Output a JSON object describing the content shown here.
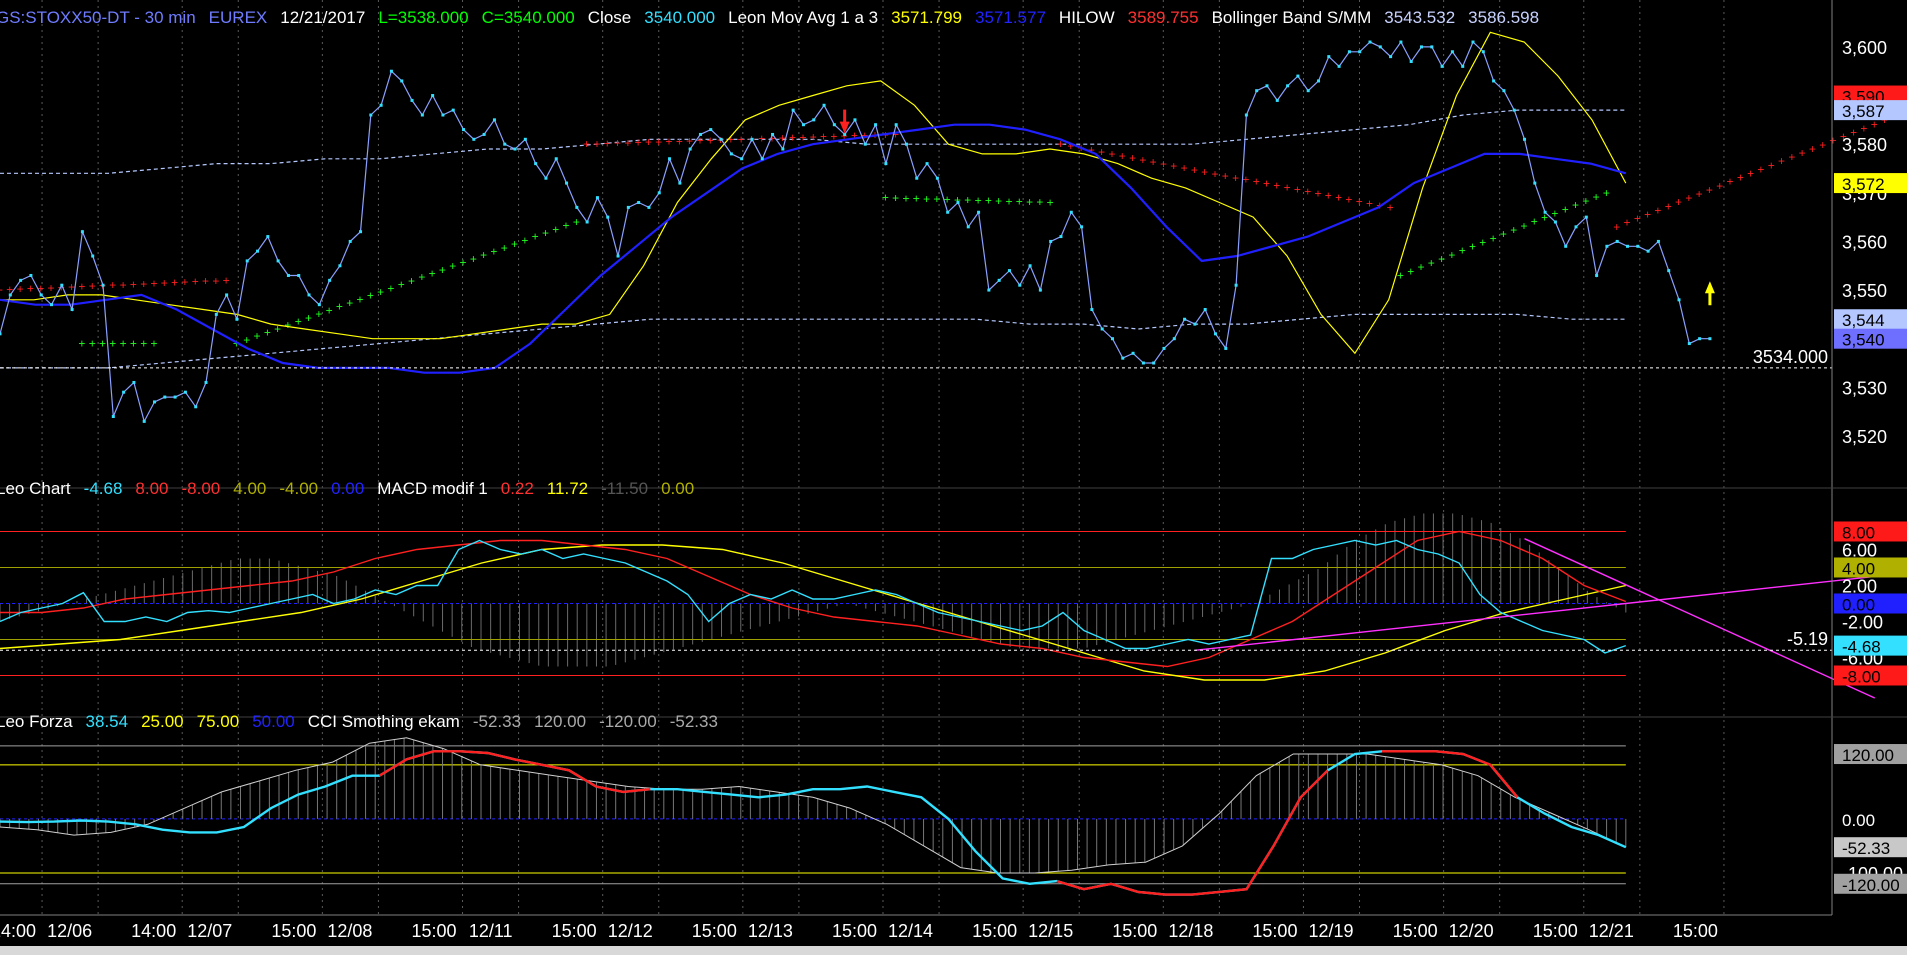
{
  "header": {
    "main": [
      {
        "text": "GS:STOXX50-DT - 30 min",
        "color": "#6f7cff"
      },
      {
        "text": "EUREX",
        "color": "#6f7cff"
      },
      {
        "text": "12/21/2017",
        "color": "#ffffff"
      },
      {
        "text": "L=3538.000",
        "color": "#00ff00"
      },
      {
        "text": "C=3540.000",
        "color": "#00ff00"
      },
      {
        "text": "Close",
        "color": "#ffffff"
      },
      {
        "text": "3540.000",
        "color": "#33e0ff"
      },
      {
        "text": "Leon Mov Avg 1 a 3",
        "color": "#ffffff"
      },
      {
        "text": "3571.799",
        "color": "#ffff00"
      },
      {
        "text": "3571.577",
        "color": "#2222ff"
      },
      {
        "text": "HILOW",
        "color": "#ffffff"
      },
      {
        "text": "3589.755",
        "color": "#ff3030"
      },
      {
        "text": "Bollinger Band S/MM",
        "color": "#ffffff"
      },
      {
        "text": "3543.532",
        "color": "#c8d2ff"
      },
      {
        "text": "3586.598",
        "color": "#c8d2ff"
      }
    ],
    "macd": [
      {
        "text": "Leo Chart",
        "color": "#ffffff"
      },
      {
        "text": "-4.68",
        "color": "#33e0ff"
      },
      {
        "text": "8.00",
        "color": "#ff3030"
      },
      {
        "text": "-8.00",
        "color": "#ff3030"
      },
      {
        "text": "4.00",
        "color": "#b0b000"
      },
      {
        "text": "-4.00",
        "color": "#b0b000"
      },
      {
        "text": "0.00",
        "color": "#2222ff"
      },
      {
        "text": "MACD modif 1",
        "color": "#ffffff"
      },
      {
        "text": "0.22",
        "color": "#ff3030"
      },
      {
        "text": "11.72",
        "color": "#ffff00"
      },
      {
        "text": "-11.50",
        "color": "#555555"
      },
      {
        "text": "0.00",
        "color": "#b0b000"
      }
    ],
    "cci": [
      {
        "text": "Leo Forza",
        "color": "#ffffff"
      },
      {
        "text": "38.54",
        "color": "#33e0ff"
      },
      {
        "text": "25.00",
        "color": "#ffff00"
      },
      {
        "text": "75.00",
        "color": "#ffff00"
      },
      {
        "text": "50.00",
        "color": "#2222ff"
      },
      {
        "text": "CCI Smothing ekam",
        "color": "#ffffff"
      },
      {
        "text": "-52.33",
        "color": "#aaaaaa"
      },
      {
        "text": "120.00",
        "color": "#aaaaaa"
      },
      {
        "text": "-120.00",
        "color": "#aaaaaa"
      },
      {
        "text": "-52.33",
        "color": "#aaaaaa"
      }
    ]
  },
  "time_axis": [
    {
      "label": "14:00",
      "i": 3
    },
    {
      "label": "12/06",
      "i": 7
    },
    {
      "label": "14:00",
      "i": 13
    },
    {
      "label": "12/07",
      "i": 17
    },
    {
      "label": "15:00",
      "i": 23
    },
    {
      "label": "12/08",
      "i": 27
    },
    {
      "label": "15:00",
      "i": 33
    },
    {
      "label": "12/11",
      "i": 37
    },
    {
      "label": "15:00",
      "i": 43
    },
    {
      "label": "12/12",
      "i": 47
    },
    {
      "label": "15:00",
      "i": 53
    },
    {
      "label": "12/13",
      "i": 57
    },
    {
      "label": "15:00",
      "i": 63
    },
    {
      "label": "12/14",
      "i": 67
    },
    {
      "label": "15:00",
      "i": 73
    },
    {
      "label": "12/15",
      "i": 77
    },
    {
      "label": "15:00",
      "i": 83
    },
    {
      "label": "12/18",
      "i": 87
    },
    {
      "label": "15:00",
      "i": 93
    },
    {
      "label": "12/19",
      "i": 97
    },
    {
      "label": "15:00",
      "i": 103
    },
    {
      "label": "12/20",
      "i": 107
    },
    {
      "label": "15:00",
      "i": 113
    },
    {
      "label": "12/21",
      "i": 117
    },
    {
      "label": "15:00",
      "i": 123
    }
  ],
  "chart_data": [
    {
      "type": "line",
      "name": "price",
      "ylim": [
        3513,
        3608
      ],
      "yticks": [
        3520,
        3530,
        3540,
        3550,
        3560,
        3570,
        3580,
        3590,
        3600
      ],
      "reference_line": {
        "value": 3534,
        "label": "3534.000"
      },
      "badges": [
        {
          "value": 3590,
          "label": "3,590",
          "bg": "#ff1a1a",
          "fg": "#000000"
        },
        {
          "value": 3587,
          "label": "3,587",
          "bg": "#b4c8ff",
          "fg": "#000000"
        },
        {
          "value": 3572,
          "label": "3,572",
          "bg": "#ffff00",
          "fg": "#000000"
        },
        {
          "value": 3544,
          "label": "3,544",
          "bg": "#b4c8ff",
          "fg": "#000000"
        },
        {
          "value": 3540,
          "label": "3,540",
          "bg": "#6f6fff",
          "fg": "#000000"
        }
      ],
      "close": [
        3541,
        3549,
        3552,
        3553,
        3549,
        3547,
        3551,
        3546,
        3562,
        3557,
        3551,
        3524,
        3529,
        3531,
        3523,
        3527,
        3528,
        3528,
        3529,
        3526,
        3531,
        3545,
        3549,
        3544,
        3556,
        3558,
        3561,
        3556,
        3553,
        3553,
        3549,
        3547,
        3552,
        3555,
        3560,
        3562,
        3586,
        3588,
        3595,
        3593,
        3589,
        3586,
        3590,
        3586,
        3587,
        3583,
        3581,
        3582,
        3585,
        3580,
        3579,
        3581,
        3576,
        3573,
        3577,
        3572,
        3567,
        3564,
        3569,
        3565,
        3557,
        3567,
        3568,
        3567,
        3570,
        3577,
        3572,
        3579,
        3582,
        3583,
        3581,
        3578,
        3577,
        3581,
        3577,
        3582,
        3579,
        3587,
        3584,
        3585,
        3588,
        3584,
        3582,
        3585,
        3580,
        3584,
        3576,
        3584,
        3580,
        3573,
        3576,
        3573,
        3566,
        3568,
        3563,
        3566,
        3550,
        3552,
        3554,
        3551,
        3555,
        3550,
        3560,
        3561,
        3566,
        3563,
        3546,
        3542,
        3540,
        3536,
        3537,
        3535,
        3535,
        3538,
        3540,
        3544,
        3543,
        3546,
        3541,
        3538,
        3551,
        3586,
        3591,
        3592,
        3589,
        3592,
        3594,
        3591,
        3593,
        3598,
        3596,
        3599,
        3599,
        3601,
        3600,
        3598,
        3601,
        3597,
        3600,
        3600,
        3596,
        3599,
        3596,
        3601,
        3599,
        3593,
        3591,
        3587,
        3581,
        3572,
        3566,
        3564,
        3559,
        3563,
        3565,
        3553,
        3559,
        3560,
        3559,
        3559,
        3558,
        3560,
        3554,
        3548,
        3539,
        3540,
        3540
      ],
      "ma_yellow": [
        3548,
        3548,
        3549,
        3549,
        3548,
        3547,
        3546,
        3545,
        3543,
        3542,
        3541,
        3540,
        3540,
        3540,
        3541,
        3542,
        3543,
        3543,
        3545,
        3555,
        3568,
        3577,
        3585,
        3588,
        3590,
        3592,
        3593,
        3588,
        3580,
        3578,
        3578,
        3579,
        3578,
        3576,
        3573,
        3571,
        3568,
        3565,
        3557,
        3545,
        3537,
        3548,
        3571,
        3590,
        3603,
        3601,
        3594,
        3585,
        3572
      ],
      "ma_blue": [
        3548,
        3547,
        3547,
        3548,
        3549,
        3546,
        3542,
        3538,
        3535,
        3534,
        3534,
        3534,
        3533,
        3533,
        3534,
        3539,
        3546,
        3553,
        3559,
        3565,
        3570,
        3575,
        3578,
        3580,
        3581,
        3582,
        3583,
        3584,
        3584,
        3583,
        3581,
        3578,
        3571,
        3563,
        3556,
        3557,
        3559,
        3561,
        3564,
        3567,
        3572,
        3575,
        3578,
        3578,
        3577,
        3576,
        3574
      ],
      "bb_upper": [
        3574,
        3574,
        3574,
        3575,
        3576,
        3576,
        3577,
        3577,
        3578,
        3579,
        3579,
        3580,
        3581,
        3581,
        3581,
        3581,
        3580,
        3580,
        3580,
        3580,
        3580,
        3580,
        3580,
        3581,
        3582,
        3583,
        3584,
        3586,
        3587,
        3587,
        3587
      ],
      "bb_lower": [
        3534,
        3534,
        3534,
        3535,
        3536,
        3537,
        3538,
        3539,
        3540,
        3541,
        3542,
        3543,
        3544,
        3544,
        3544,
        3544,
        3544,
        3544,
        3544,
        3543,
        3543,
        3542,
        3543,
        3543,
        3544,
        3545,
        3545,
        3545,
        3545,
        3544,
        3544
      ],
      "hilow_red": [
        {
          "from": 0,
          "to": 22,
          "v0": 3550,
          "v1": 3552
        },
        {
          "from": 57,
          "to": 87,
          "v0": 3580,
          "v1": 3582
        },
        {
          "from": 103,
          "to": 135,
          "v0": 3580,
          "v1": 3567
        },
        {
          "from": 157,
          "to": 189,
          "v0": 3563,
          "v1": 3590
        }
      ],
      "hilow_green": [
        {
          "from": 8,
          "to": 15,
          "v0": 3539,
          "v1": 3539
        },
        {
          "from": 23,
          "to": 56,
          "v0": 3539,
          "v1": 3564
        },
        {
          "from": 86,
          "to": 102,
          "v0": 3569,
          "v1": 3568
        },
        {
          "from": 136,
          "to": 156,
          "v0": 3553,
          "v1": 3570
        }
      ],
      "arrows": [
        {
          "i": 82,
          "value": 3583,
          "dir": "down",
          "color": "#ff2020"
        },
        {
          "i": 166,
          "value": 3551,
          "dir": "up",
          "color": "#ffff00"
        }
      ]
    },
    {
      "type": "line",
      "name": "macd",
      "ylim": [
        -11.5,
        11.72
      ],
      "yticks": [
        6,
        2,
        -2,
        -6
      ],
      "levels": [
        {
          "value": 8,
          "color": "#ff2020"
        },
        {
          "value": -8,
          "color": "#ff2020"
        },
        {
          "value": 4,
          "color": "#a0a000"
        },
        {
          "value": -4,
          "color": "#a0a000"
        },
        {
          "value": 0,
          "color": "#2020ff"
        }
      ],
      "reference_line": {
        "value": -5.19,
        "label": "-5.19"
      },
      "badges": [
        {
          "value": 8,
          "label": "8.00",
          "bg": "#ff1a1a",
          "fg": "#000000"
        },
        {
          "value": 4,
          "label": "4.00",
          "bg": "#b0b000",
          "fg": "#000000"
        },
        {
          "value": 0,
          "label": "0.00",
          "bg": "#2020ff",
          "fg": "#000000"
        },
        {
          "value": -4.68,
          "label": "-4.68",
          "bg": "#33e0ff",
          "fg": "#000000"
        },
        {
          "value": -8,
          "label": "-8.00",
          "bg": "#ff1a1a",
          "fg": "#000000"
        }
      ],
      "cyan": [
        -2,
        -1,
        -0.5,
        0,
        1.2,
        -2,
        -2,
        -1.5,
        -2,
        -1,
        -0.8,
        -1,
        -0.5,
        0,
        0.5,
        1,
        0,
        0.5,
        1.5,
        1,
        2,
        2,
        6,
        7,
        6,
        5.5,
        6,
        5,
        5.5,
        5,
        4.5,
        3.5,
        2.5,
        1,
        -2,
        0,
        1,
        0.5,
        1.5,
        0.5,
        0.5,
        1,
        1.5,
        1,
        0,
        -1,
        -1.5,
        -2,
        -2.5,
        -3,
        -2.5,
        -1,
        -3,
        -4,
        -5,
        -5,
        -4.5,
        -4,
        -4.5,
        -4,
        -3.5,
        5,
        5,
        6,
        6.5,
        7,
        6.5,
        7,
        6,
        5.5,
        4.5,
        1,
        -1,
        -2,
        -3,
        -3.5,
        -4,
        -5.5,
        -4.68
      ],
      "red": [
        -1,
        -1,
        -0.5,
        0.5,
        1,
        1.5,
        2,
        2.5,
        3.5,
        5,
        6,
        6.5,
        7,
        7,
        6.5,
        6,
        5,
        3,
        1,
        -0.5,
        -1.5,
        -2,
        -2.5,
        -3.5,
        -4.5,
        -5,
        -6,
        -6.5,
        -7,
        -6,
        -4,
        -2,
        1,
        4,
        7,
        8,
        7,
        5,
        2,
        0.22
      ],
      "yellow": [
        -5,
        -4.5,
        -4,
        -3,
        -2,
        -1,
        0.5,
        2.5,
        4.5,
        6,
        6.5,
        6.5,
        6,
        4.5,
        2.5,
        0.5,
        -1.5,
        -3.5,
        -5.5,
        -7.5,
        -8.5,
        -8.5,
        -7.5,
        -5.5,
        -3,
        -1,
        0.5,
        2
      ],
      "histogram_env": [
        -2,
        -1,
        0,
        1,
        2,
        3,
        4,
        5,
        5,
        4,
        3,
        1,
        -1,
        -3,
        -5,
        -6,
        -7,
        -7,
        -7,
        -6,
        -5,
        -4,
        -3,
        -2,
        -1,
        0,
        -1,
        -2,
        -3,
        -4,
        -5,
        -5,
        -5,
        -4,
        -3,
        -2,
        -1,
        0,
        2,
        4,
        7,
        9,
        10,
        10,
        9,
        7,
        4,
        1,
        -1
      ],
      "trendlines": [
        {
          "from_i": 116,
          "from_v": -5.2,
          "to_i": 190,
          "to_v": 4,
          "color": "#ff30ff"
        },
        {
          "from_i": 148,
          "from_v": 7.2,
          "to_i": 182,
          "to_v": -10.5,
          "color": "#ff30ff"
        }
      ]
    },
    {
      "type": "line",
      "name": "cci",
      "ylim": [
        -150,
        170
      ],
      "yticks": [
        120,
        0,
        -100
      ],
      "levels": [
        {
          "value": 135,
          "color": "#a0a0a0"
        },
        {
          "value": 100,
          "color": "#ffff00"
        },
        {
          "value": 0,
          "color": "#2020ff"
        },
        {
          "value": -100,
          "color": "#ffff00"
        },
        {
          "value": -120,
          "color": "#a0a0a0"
        }
      ],
      "badges": [
        {
          "value": 120,
          "label": "120.00",
          "bg": "#a0a0a0",
          "fg": "#000000"
        },
        {
          "value": 0,
          "label": "0.00",
          "bg": "#000000",
          "fg": "#ffffff"
        },
        {
          "value": -52.33,
          "label": "-52.33",
          "bg": "#c8c8c8",
          "fg": "#000000"
        },
        {
          "value": -120,
          "label": "-120.00",
          "bg": "#a0a0a0",
          "fg": "#000000"
        }
      ],
      "cyan": [
        -5,
        -6,
        -5,
        -3,
        -5,
        -10,
        -20,
        -25,
        -25,
        -15,
        20,
        45,
        60,
        80,
        80,
        110,
        125,
        125,
        122,
        110,
        100,
        90,
        60,
        50,
        55,
        55,
        50,
        45,
        40,
        45,
        55,
        55,
        60,
        50,
        40,
        0,
        -60,
        -110,
        -120,
        -115,
        -130,
        -120,
        -135,
        -140,
        -140,
        -135,
        -130,
        -50,
        40,
        90,
        120,
        125,
        125,
        125,
        120,
        100,
        40,
        10,
        -15,
        -30,
        -52.33
      ],
      "red_segments": [
        {
          "from": 14,
          "to": 24
        },
        {
          "from": 39,
          "to": 49
        },
        {
          "from": 51,
          "to": 56
        }
      ],
      "gray_env": [
        -15,
        -20,
        -30,
        -25,
        -10,
        20,
        50,
        70,
        90,
        105,
        140,
        150,
        130,
        100,
        90,
        80,
        70,
        60,
        55,
        55,
        60,
        50,
        40,
        20,
        -10,
        -50,
        -90,
        -100,
        -100,
        -95,
        -85,
        -80,
        -50,
        10,
        80,
        120,
        120,
        120,
        110,
        100,
        80,
        40,
        10,
        -20,
        -52.33
      ]
    }
  ]
}
